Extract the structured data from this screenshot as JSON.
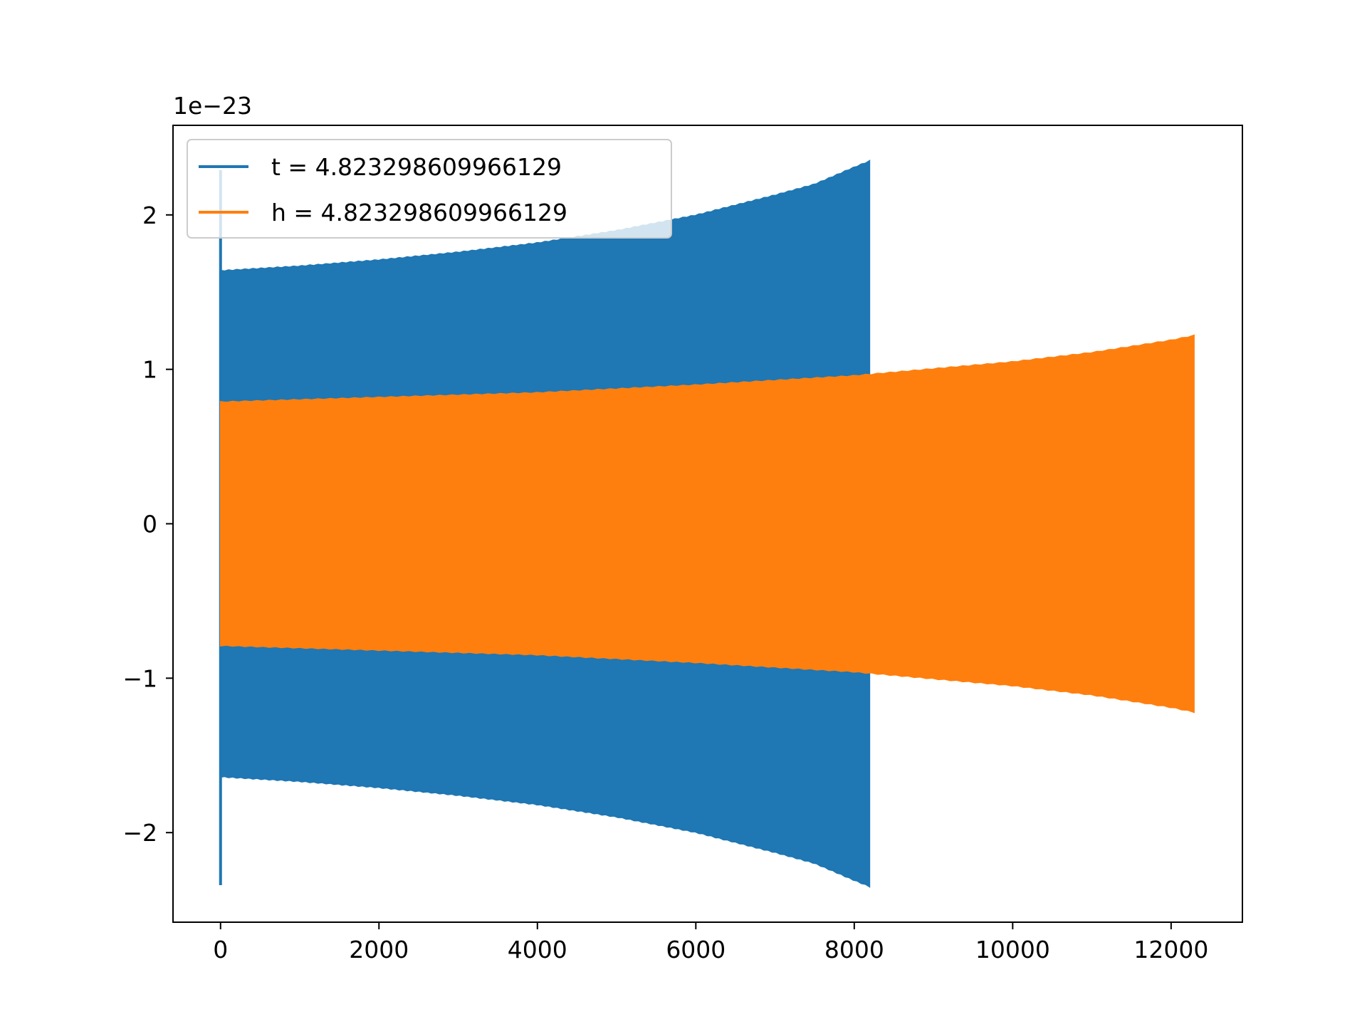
{
  "chart_data": {
    "type": "line",
    "title": "",
    "xlabel": "",
    "ylabel": "",
    "y_offset_label": "1e−23",
    "xlim": [
      -600,
      12900
    ],
    "ylim": [
      -2.58,
      2.58
    ],
    "xticks": [
      0,
      2000,
      4000,
      6000,
      8000,
      10000,
      12000
    ],
    "xtick_labels": [
      "0",
      "2000",
      "4000",
      "6000",
      "8000",
      "10000",
      "12000"
    ],
    "yticks": [
      -2,
      -1,
      0,
      1,
      2
    ],
    "ytick_labels": [
      "−2",
      "−1",
      "0",
      "1",
      "2"
    ],
    "grid": false,
    "legend_position": "upper-left",
    "series": [
      {
        "name": "t = 4.823298609966129",
        "color": "#1f77b4",
        "x_range": [
          0,
          8192
        ],
        "envelope": {
          "x": [
            0,
            1000,
            2000,
            3000,
            4000,
            5000,
            6000,
            7000,
            7500,
            8000,
            8192
          ],
          "upper": [
            1.64,
            1.67,
            1.71,
            1.76,
            1.82,
            1.9,
            2.0,
            2.13,
            2.2,
            2.31,
            2.35
          ],
          "lower": [
            -1.64,
            -1.67,
            -1.71,
            -1.76,
            -1.82,
            -1.9,
            -2.0,
            -2.13,
            -2.2,
            -2.31,
            -2.35
          ]
        },
        "initial_spike": {
          "x": 0,
          "max": 2.29,
          "min": -2.34
        }
      },
      {
        "name": "h = 4.823298609966129",
        "color": "#ff7f0e",
        "x_range": [
          0,
          12288
        ],
        "envelope": {
          "x": [
            0,
            2000,
            4000,
            6000,
            8000,
            10000,
            11000,
            12000,
            12288
          ],
          "upper": [
            0.79,
            0.82,
            0.85,
            0.9,
            0.96,
            1.05,
            1.11,
            1.19,
            1.22
          ],
          "lower": [
            -0.79,
            -0.82,
            -0.85,
            -0.9,
            -0.96,
            -1.05,
            -1.11,
            -1.19,
            -1.22
          ]
        }
      }
    ]
  }
}
